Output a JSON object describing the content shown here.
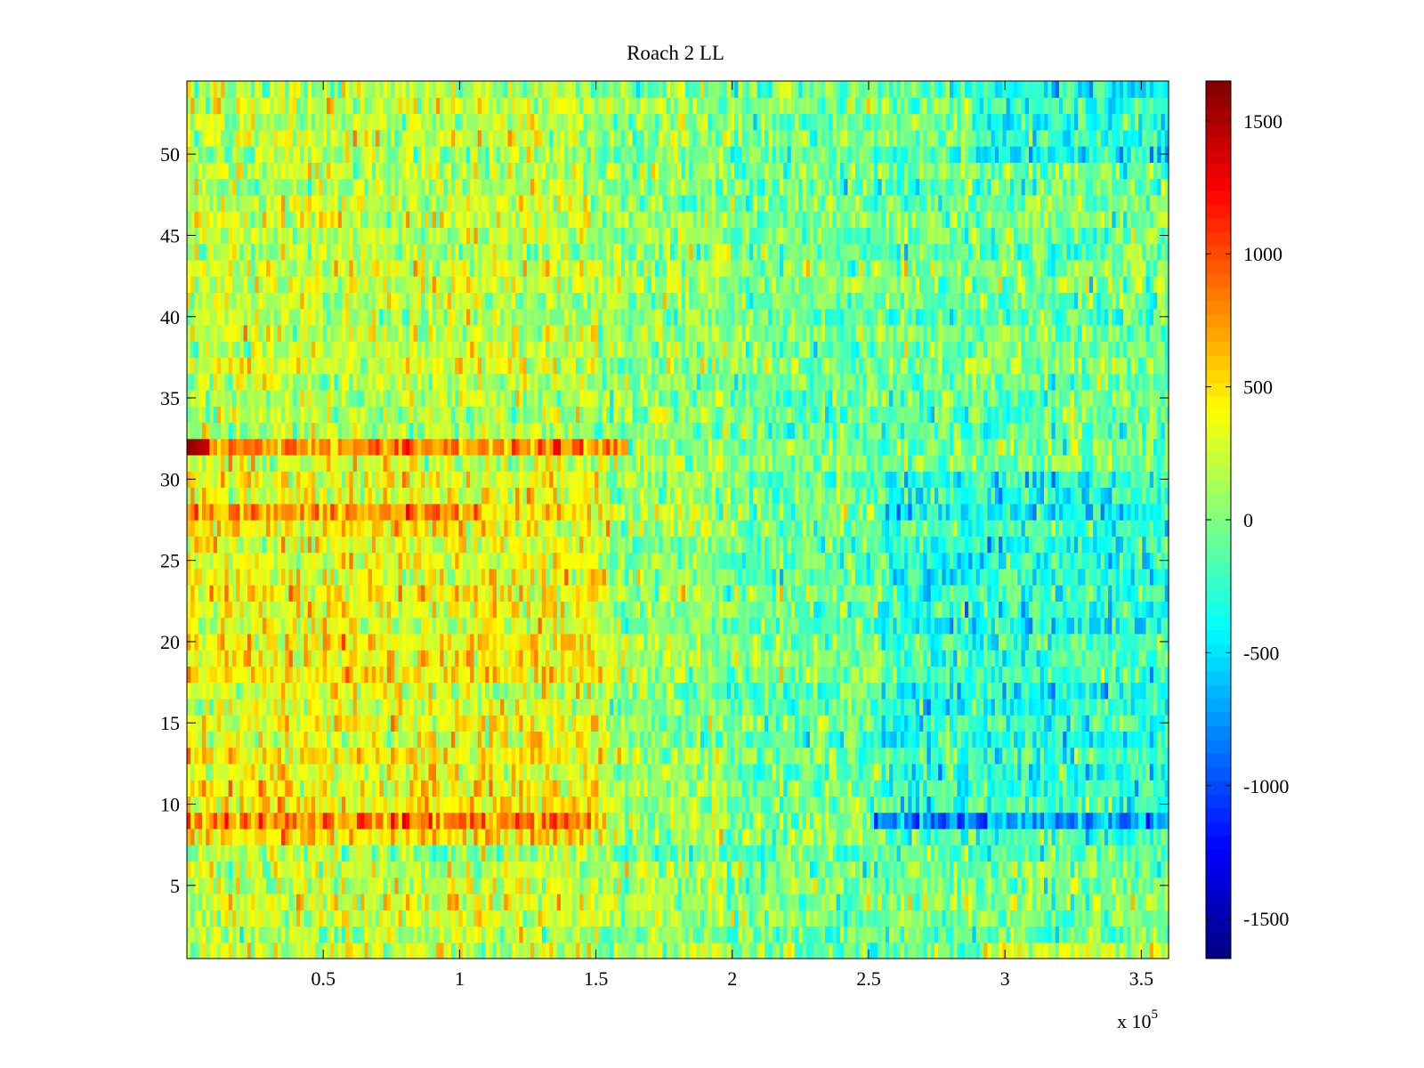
{
  "chart_data": {
    "type": "heatmap",
    "title": "Roach 2 LL",
    "xlabel": "",
    "ylabel": "",
    "x_range": [
      0,
      360000
    ],
    "y_range": [
      0.5,
      54.5
    ],
    "x_ticks": [
      50000,
      100000,
      150000,
      200000,
      250000,
      300000,
      350000
    ],
    "x_tick_labels": [
      "0.5",
      "1",
      "1.5",
      "2",
      "2.5",
      "3",
      "3.5"
    ],
    "x_exponent_label": {
      "base": "x 10",
      "exponent": "5"
    },
    "y_ticks": [
      5,
      10,
      15,
      20,
      25,
      30,
      35,
      40,
      45,
      50
    ],
    "y_tick_labels": [
      "5",
      "10",
      "15",
      "20",
      "25",
      "30",
      "35",
      "40",
      "45",
      "50"
    ],
    "rows": 54,
    "colormap": "jet",
    "color_range": [
      -1650,
      1650
    ],
    "colorbar": {
      "ticks": [
        1500,
        1000,
        500,
        0,
        -500,
        -1000,
        -1500
      ],
      "tick_labels": [
        "1500",
        "1000",
        "500",
        "0",
        "-500",
        "-1000",
        "-1500"
      ],
      "placement": "right"
    },
    "row_features": [
      {
        "row": 32,
        "note": "strong high values, peaks near 1650 at start"
      },
      {
        "row": 9,
        "note": "high to x≈1.5e5, low beyond 2.5e5"
      },
      {
        "row": 28,
        "note": "high early, low late"
      }
    ],
    "regions": [
      {
        "x_from": 0,
        "x_to": 155000,
        "rows_from": 8,
        "rows_to": 30,
        "level": 300
      },
      {
        "x_from": 255000,
        "x_to": 360000,
        "rows_from": 8,
        "rows_to": 30,
        "level": -380
      }
    ]
  }
}
